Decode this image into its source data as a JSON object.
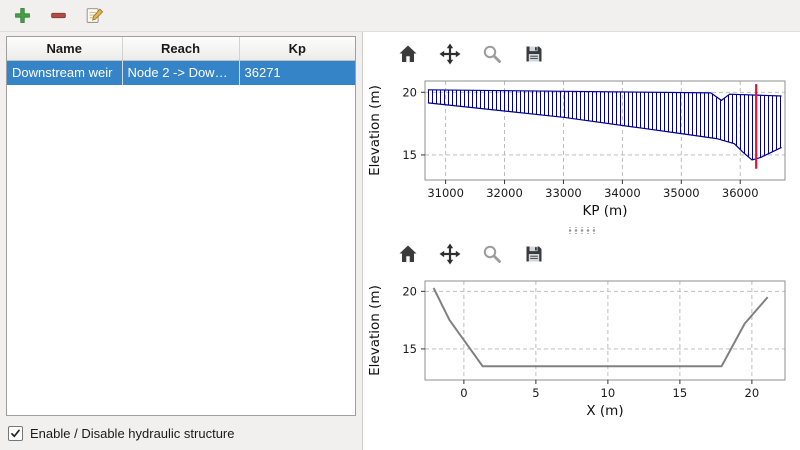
{
  "colors": {
    "selection_blue": "#3584c8",
    "profile_blue": "#00008b",
    "marker_red": "#e8112d",
    "cross_section_gray": "#808080"
  },
  "main_toolbar": {
    "icons": [
      "add-icon",
      "remove-icon",
      "edit-icon"
    ]
  },
  "structures_table": {
    "columns": [
      "Name",
      "Reach",
      "Kp"
    ],
    "rows": [
      {
        "name": "Downstream weir",
        "reach": "Node 2 -> Down…",
        "kp": "36271"
      }
    ]
  },
  "footer": {
    "checkbox_label": "Enable / Disable hydraulic structure",
    "checked": true
  },
  "plot_toolbars": {
    "icons": [
      "home-icon",
      "pan-icon",
      "zoom-icon",
      "save-icon"
    ]
  },
  "chart_data": [
    {
      "type": "area",
      "title": "",
      "xlabel": "KP (m)",
      "ylabel": "Elevation (m)",
      "xlim": [
        30650,
        36760
      ],
      "ylim": [
        13.0,
        20.9
      ],
      "xticks": [
        31000,
        32000,
        33000,
        34000,
        35000,
        36000
      ],
      "yticks": [
        15,
        20
      ],
      "grid": true,
      "series": [
        {
          "name": "bank-top-profile",
          "color": "#00008b",
          "width": 1.2,
          "x": [
            30700,
            35500,
            35680,
            35820,
            36700
          ],
          "y": [
            20.2,
            19.95,
            19.35,
            19.85,
            19.7
          ]
        },
        {
          "name": "bed-bottom-profile",
          "color": "#00008b",
          "width": 1.2,
          "x": [
            30700,
            33000,
            35000,
            35600,
            35900,
            36050,
            36200,
            36350,
            36700
          ],
          "y": [
            19.15,
            18.0,
            16.7,
            16.3,
            15.9,
            15.2,
            14.6,
            14.8,
            15.6
          ]
        }
      ],
      "fill_between": {
        "upper": 0,
        "lower": 1,
        "hatch": "vertical",
        "color": "#00008b"
      },
      "marker_line": {
        "x": 36271,
        "y0": 13.9,
        "y1": 20.65,
        "color": "#e8112d"
      }
    },
    {
      "type": "line",
      "title": "",
      "xlabel": "X (m)",
      "ylabel": "Elevation (m)",
      "xlim": [
        -2.7,
        22.3
      ],
      "ylim": [
        12.3,
        20.9
      ],
      "xticks": [
        0,
        5,
        10,
        15,
        20
      ],
      "yticks": [
        15,
        20
      ],
      "grid": true,
      "series": [
        {
          "name": "cross-section-profile",
          "color": "#808080",
          "width": 2,
          "x": [
            -2.1,
            -1.0,
            1.3,
            17.9,
            19.5,
            21.1
          ],
          "y": [
            20.3,
            17.5,
            13.5,
            13.5,
            17.2,
            19.5
          ]
        }
      ]
    }
  ]
}
